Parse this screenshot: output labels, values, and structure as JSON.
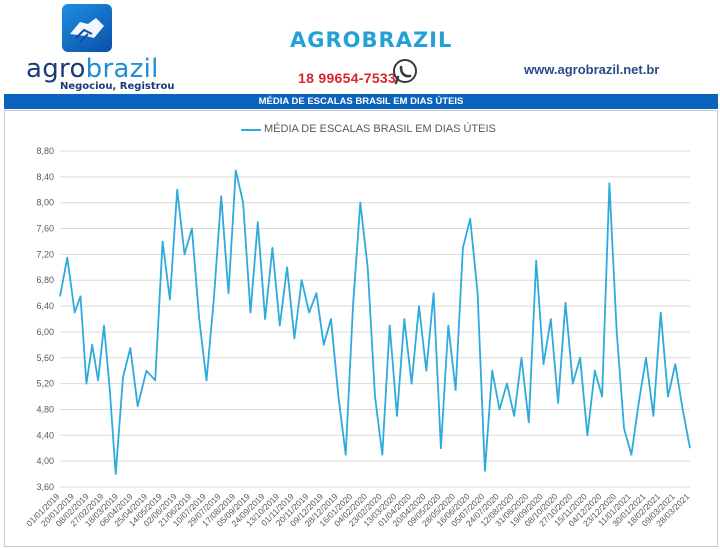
{
  "header": {
    "logo_icon": "handshake-icon",
    "brand_part1": "agro",
    "brand_part2": "brazil",
    "tagline": "Negociou, Registrou",
    "company_name": "AGROBRAZIL",
    "phone": "18 99654-7533",
    "phone_icon": "whatsapp-icon",
    "website": "www.agrobrazil.net.br"
  },
  "banner_title": "MÉDIA DE ESCALAS BRASIL EM DIAS ÚTEIS",
  "colors": {
    "series": "#2eaadc",
    "banner": "#0b63bd",
    "company": "#22a1d9",
    "phone": "#d7262e"
  },
  "chart_data": {
    "type": "line",
    "legend": "MÉDIA DE ESCALAS BRASIL EM DIAS ÚTEIS",
    "legend_position": "top-center",
    "grid": true,
    "ylim": [
      3.6,
      8.8
    ],
    "yticks": [
      "3,60",
      "4,00",
      "4,40",
      "4,80",
      "5,20",
      "5,60",
      "6,00",
      "6,40",
      "6,80",
      "7,20",
      "7,60",
      "8,00",
      "8,40",
      "8,80"
    ],
    "xticks": [
      "01/01/2019",
      "20/01/2019",
      "08/02/2019",
      "27/02/2019",
      "18/03/2019",
      "06/04/2019",
      "25/04/2019",
      "14/05/2019",
      "02/06/2019",
      "21/06/2019",
      "10/07/2019",
      "29/07/2019",
      "17/08/2019",
      "05/09/2019",
      "24/09/2019",
      "13/10/2019",
      "01/11/2019",
      "20/11/2019",
      "09/12/2019",
      "28/12/2019",
      "16/01/2020",
      "04/02/2020",
      "23/02/2020",
      "13/03/2020",
      "01/04/2020",
      "20/04/2020",
      "09/05/2020",
      "28/05/2020",
      "16/06/2020",
      "05/07/2020",
      "24/07/2020",
      "12/08/2020",
      "31/08/2020",
      "19/09/2020",
      "08/10/2020",
      "27/10/2020",
      "15/11/2020",
      "04/12/2020",
      "23/12/2020",
      "11/01/2021",
      "30/01/2021",
      "18/02/2021",
      "09/03/2021",
      "28/03/2021"
    ],
    "series": [
      {
        "name": "MÉDIA DE ESCALAS BRASIL EM DIAS ÚTEIS",
        "x": [
          0,
          0.5,
          1,
          1.4,
          1.8,
          2.2,
          2.6,
          3,
          3.4,
          3.8,
          4.3,
          4.8,
          5.3,
          5.9,
          6.5,
          7,
          7.5,
          8,
          8.5,
          9,
          9.5,
          10,
          10.5,
          11,
          11.5,
          12,
          12.5,
          13,
          13.5,
          14,
          14.5,
          15,
          15.5,
          16,
          16.5,
          17,
          17.5,
          18,
          18.5,
          19,
          19.5,
          20,
          20.5,
          21,
          21.5,
          22,
          22.5,
          23,
          23.5,
          24,
          24.5,
          25,
          25.5,
          26,
          26.5,
          27,
          27.5,
          28,
          28.5,
          29,
          29.5,
          30,
          30.5,
          31,
          31.5,
          32,
          32.5,
          33,
          33.5,
          34,
          34.5,
          35,
          35.5,
          36,
          36.5,
          37,
          37.5,
          38,
          38.5,
          39,
          39.5,
          40,
          40.5,
          41,
          41.5,
          42,
          42.5,
          43
        ],
        "values": [
          6.55,
          7.15,
          6.3,
          6.55,
          5.2,
          5.8,
          5.25,
          6.1,
          5.1,
          3.8,
          5.3,
          5.75,
          4.85,
          5.4,
          5.25,
          7.4,
          6.5,
          8.2,
          7.2,
          7.6,
          6.2,
          5.25,
          6.5,
          8.1,
          6.6,
          8.5,
          8.0,
          6.3,
          7.7,
          6.2,
          7.3,
          6.1,
          7.0,
          5.9,
          6.8,
          6.3,
          6.6,
          5.8,
          6.2,
          5.0,
          4.1,
          6.4,
          8.0,
          7.0,
          5.0,
          4.1,
          6.1,
          4.7,
          6.2,
          5.2,
          6.4,
          5.4,
          6.6,
          4.2,
          6.1,
          5.1,
          7.3,
          7.75,
          6.6,
          3.85,
          5.4,
          4.8,
          5.2,
          4.7,
          5.6,
          4.6,
          7.1,
          5.5,
          6.2,
          4.9,
          6.45,
          5.2,
          5.6,
          4.4,
          5.4,
          5.0,
          8.3,
          6.0,
          4.5,
          4.1,
          4.9,
          5.6,
          4.7,
          6.3,
          5.0,
          5.5,
          4.8,
          4.2
        ]
      }
    ]
  }
}
